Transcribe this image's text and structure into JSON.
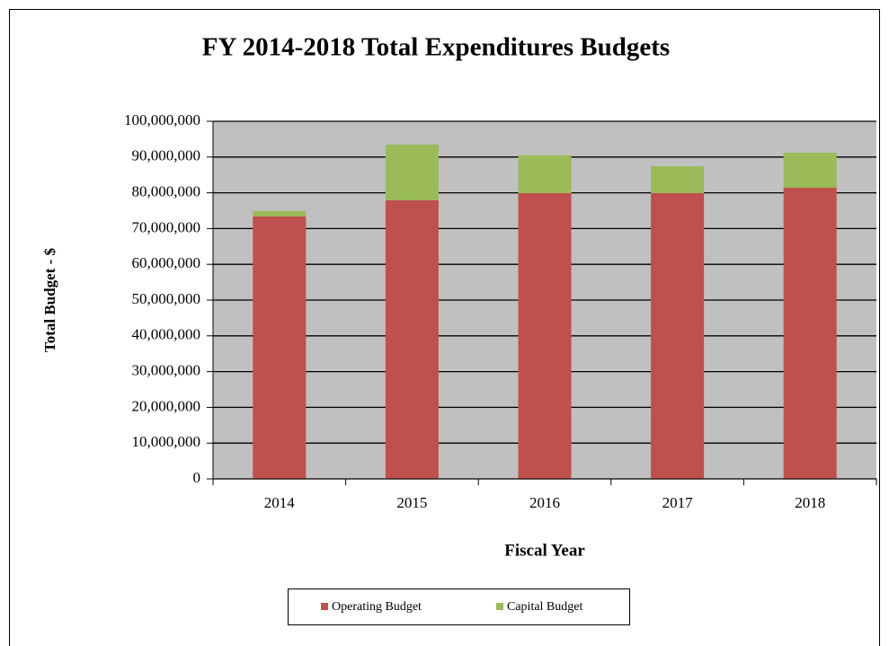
{
  "chart_data": {
    "type": "stacked_bar",
    "title": "FY 2014-2018 Total Expenditures Budgets",
    "x_label": "Fiscal Year",
    "y_label": "Total Budget - $",
    "categories": [
      "2014",
      "2015",
      "2016",
      "2017",
      "2018"
    ],
    "series": [
      {
        "name": "Operating Budget",
        "color": "#c0504d",
        "values": [
          73400000,
          77900000,
          79900000,
          79900000,
          81400000
        ]
      },
      {
        "name": "Capital Budget",
        "color": "#9bbb59",
        "values": [
          1500000,
          15600000,
          10600000,
          7500000,
          9800000
        ]
      }
    ],
    "ylim": [
      0,
      100000000
    ],
    "yticks": [
      0,
      {
        "value": 10000000,
        "label": "10,000,000"
      },
      {
        "value": 20000000,
        "label": "20,000,000"
      },
      {
        "value": 30000000,
        "label": "30,000,000"
      },
      {
        "value": 40000000,
        "label": "40,000,000"
      },
      {
        "value": 50000000,
        "label": "50,000,000"
      },
      {
        "value": 60000000,
        "label": "60,000,000"
      },
      {
        "value": 70000000,
        "label": "70,000,000"
      },
      {
        "value": 80000000,
        "label": "80,000,000"
      },
      {
        "value": 90000000,
        "label": "90,000,000"
      },
      {
        "value": 100000000,
        "label": "100,000,000"
      }
    ],
    "grid": true,
    "legend": "bottom"
  }
}
